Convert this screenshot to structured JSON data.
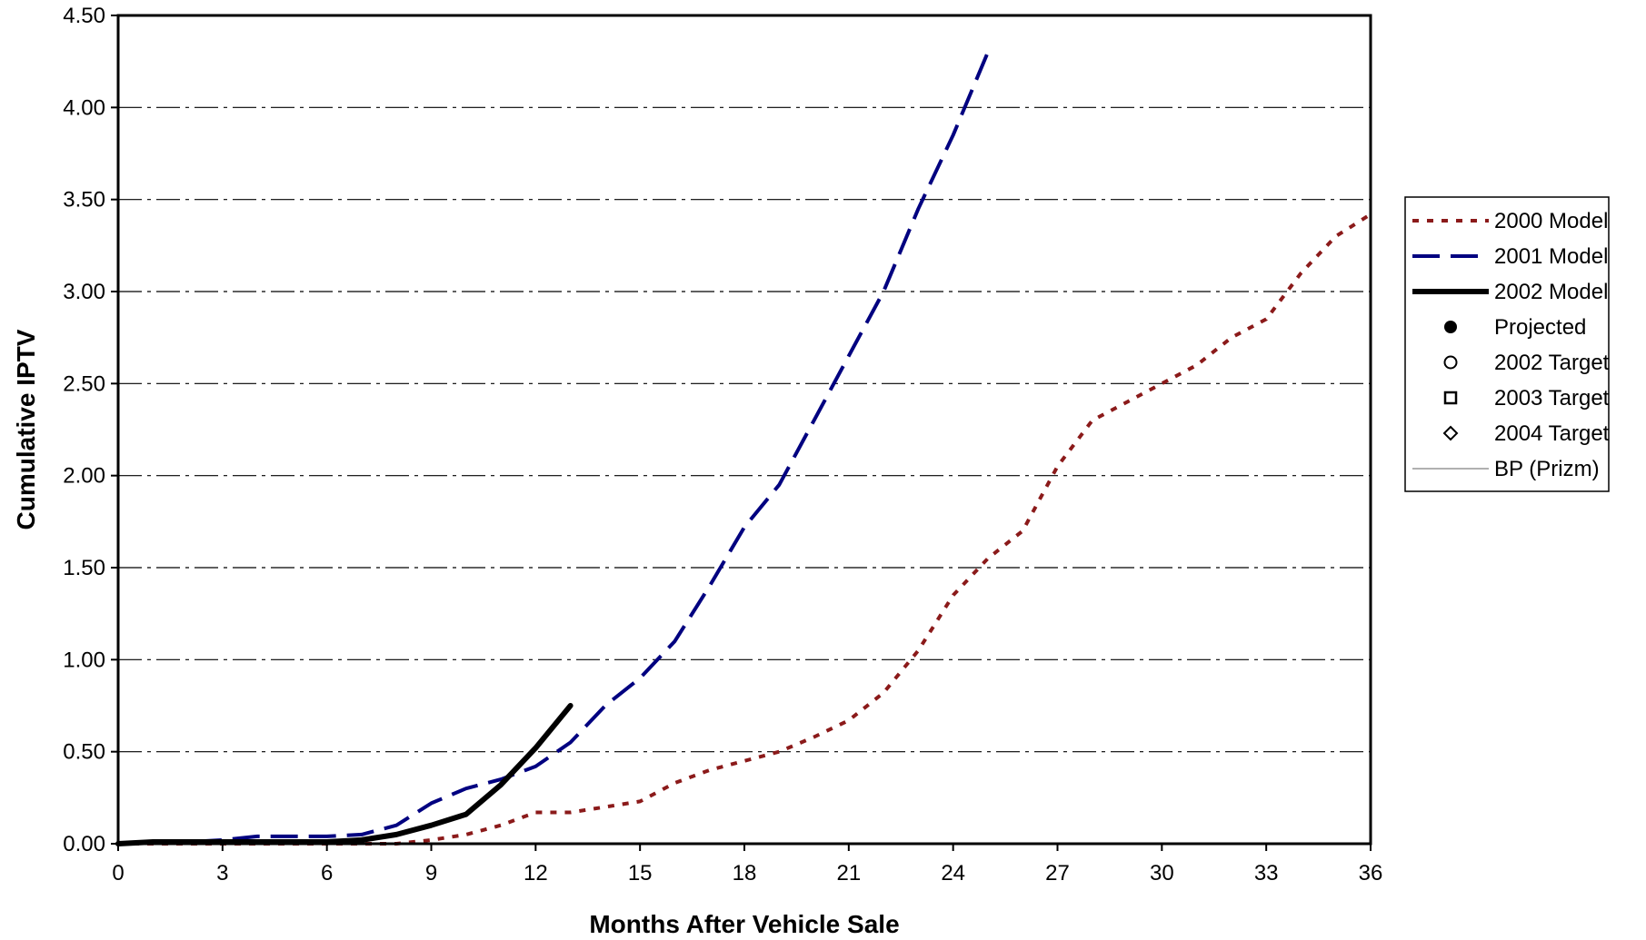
{
  "chart_data": {
    "type": "line",
    "title": "",
    "xlabel": "Months After Vehicle Sale",
    "ylabel": "Cumulative IPTV",
    "xlim": [
      0,
      36
    ],
    "ylim": [
      0,
      4.5
    ],
    "xticks": [
      0,
      3,
      6,
      9,
      12,
      15,
      18,
      21,
      24,
      27,
      30,
      33,
      36
    ],
    "yticks": [
      0,
      0.5,
      1.0,
      1.5,
      2.0,
      2.5,
      3.0,
      3.5,
      4.0,
      4.5
    ],
    "xtick_labels": [
      "0",
      "3",
      "6",
      "9",
      "12",
      "15",
      "18",
      "21",
      "24",
      "27",
      "30",
      "33",
      "36"
    ],
    "ytick_labels": [
      "0.00",
      "0.50",
      "1.00",
      "1.50",
      "2.00",
      "2.50",
      "3.00",
      "3.50",
      "4.00",
      "4.50"
    ],
    "grid": "horizontal dash-dot",
    "legend_position": "right",
    "series": [
      {
        "name": "2000 Model",
        "style": "dotted",
        "color": "#8b1a1a",
        "x": [
          0,
          1,
          2,
          3,
          4,
          5,
          6,
          7,
          8,
          9,
          10,
          11,
          12,
          13,
          14,
          15,
          16,
          17,
          18,
          19,
          20,
          21,
          22,
          23,
          24,
          25,
          26,
          27,
          28,
          29,
          30,
          31,
          32,
          33,
          34,
          35,
          36
        ],
        "y": [
          0.0,
          0.0,
          0.0,
          0.0,
          0.0,
          0.0,
          0.0,
          0.0,
          0.0,
          0.02,
          0.05,
          0.1,
          0.17,
          0.17,
          0.2,
          0.23,
          0.33,
          0.4,
          0.45,
          0.5,
          0.58,
          0.67,
          0.82,
          1.05,
          1.35,
          1.55,
          1.7,
          2.05,
          2.3,
          2.4,
          2.5,
          2.6,
          2.75,
          2.85,
          3.1,
          3.3,
          3.42
        ]
      },
      {
        "name": "2001 Model",
        "style": "dashed",
        "color": "#000080",
        "x": [
          0,
          1,
          2,
          3,
          4,
          5,
          6,
          7,
          8,
          9,
          10,
          11,
          12,
          13,
          14,
          15,
          16,
          17,
          18,
          19,
          20,
          21,
          22,
          23,
          24,
          25
        ],
        "y": [
          0.0,
          0.01,
          0.01,
          0.02,
          0.04,
          0.04,
          0.04,
          0.05,
          0.1,
          0.22,
          0.3,
          0.35,
          0.42,
          0.55,
          0.75,
          0.9,
          1.1,
          1.4,
          1.72,
          1.95,
          2.3,
          2.65,
          3.0,
          3.45,
          3.85,
          4.3
        ]
      },
      {
        "name": "2002 Model",
        "style": "solid",
        "color": "#000000",
        "x": [
          0,
          1,
          2,
          3,
          4,
          5,
          6,
          7,
          8,
          9,
          10,
          11,
          12,
          13
        ],
        "y": [
          0.0,
          0.01,
          0.01,
          0.01,
          0.01,
          0.01,
          0.01,
          0.02,
          0.05,
          0.1,
          0.16,
          0.32,
          0.52,
          0.75
        ]
      }
    ],
    "legend": [
      {
        "label": "2000 Model",
        "marker": "dotted-line",
        "color": "#8b1a1a"
      },
      {
        "label": "2001 Model",
        "marker": "dashed-line",
        "color": "#000080"
      },
      {
        "label": "2002 Model",
        "marker": "solid-line",
        "color": "#000000"
      },
      {
        "label": "Projected",
        "marker": "filled-circle",
        "color": "#000000"
      },
      {
        "label": "2002 Target",
        "marker": "open-circle",
        "color": "#000000"
      },
      {
        "label": "2003 Target",
        "marker": "open-square",
        "color": "#000000"
      },
      {
        "label": "2004 Target",
        "marker": "open-diamond",
        "color": "#000000"
      },
      {
        "label": "BP (Prizm)",
        "marker": "thin-line",
        "color": "#b0b0b0"
      }
    ]
  }
}
